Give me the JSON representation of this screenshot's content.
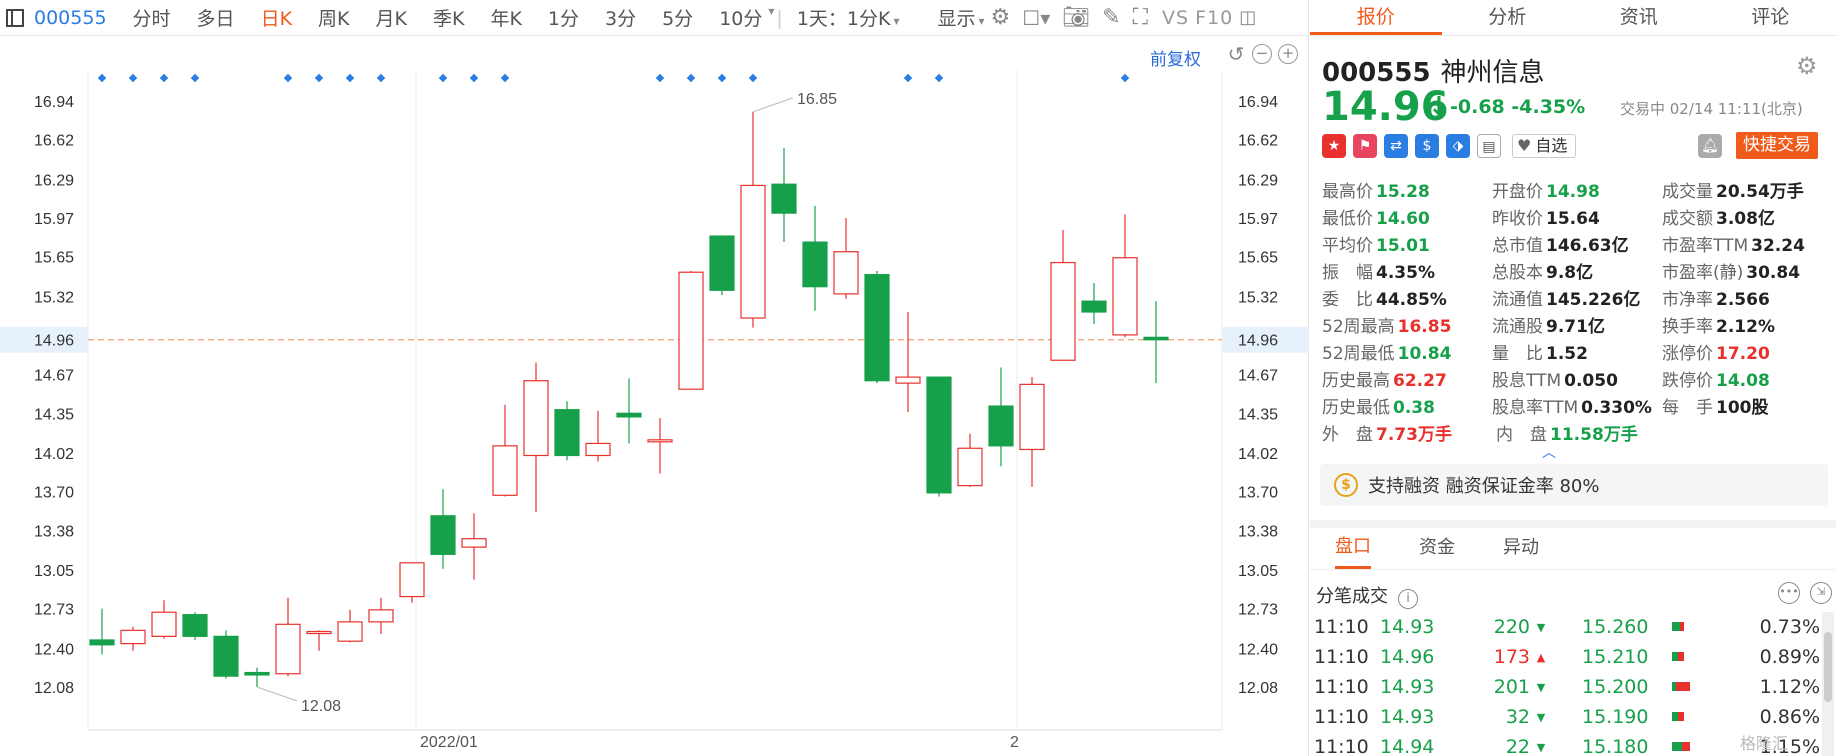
{
  "toolbar": {
    "code": "000555",
    "tabs": [
      "分时",
      "多日",
      "日K",
      "周K",
      "月K",
      "季K",
      "年K",
      "1分",
      "3分",
      "5分",
      "10分"
    ],
    "active_tab": "日K",
    "interval_select": "1天：1分K",
    "display_label": "显示",
    "vs_label": "VS",
    "f10_label": "F10"
  },
  "chart": {
    "adjust_label": "前复权",
    "high_label": "16.85",
    "low_label": "12.08",
    "current_price_label": "14.96",
    "x_labels": [
      "2022/01",
      "2"
    ]
  },
  "chart_data": {
    "type": "candlestick",
    "y_ticks": [
      "16.94",
      "16.62",
      "16.29",
      "15.97",
      "15.65",
      "15.32",
      "14.96",
      "14.67",
      "14.35",
      "14.02",
      "13.70",
      "13.38",
      "13.05",
      "12.73",
      "12.40",
      "12.08"
    ],
    "ylim": [
      12.08,
      16.94
    ],
    "current_price": 14.96,
    "candles": [
      {
        "o": 12.47,
        "h": 12.73,
        "l": 12.35,
        "c": 12.43
      },
      {
        "o": 12.44,
        "h": 12.58,
        "l": 12.38,
        "c": 12.55
      },
      {
        "o": 12.5,
        "h": 12.8,
        "l": 12.48,
        "c": 12.7
      },
      {
        "o": 12.68,
        "h": 12.7,
        "l": 12.47,
        "c": 12.5
      },
      {
        "o": 12.5,
        "h": 12.55,
        "l": 12.15,
        "c": 12.17
      },
      {
        "o": 12.2,
        "h": 12.24,
        "l": 12.08,
        "c": 12.18
      },
      {
        "o": 12.19,
        "h": 12.82,
        "l": 12.17,
        "c": 12.6
      },
      {
        "o": 12.53,
        "h": 12.55,
        "l": 12.38,
        "c": 12.54
      },
      {
        "o": 12.46,
        "h": 12.72,
        "l": 12.45,
        "c": 12.62
      },
      {
        "o": 12.62,
        "h": 12.82,
        "l": 12.52,
        "c": 12.72
      },
      {
        "o": 12.83,
        "h": 13.1,
        "l": 12.78,
        "c": 13.11
      },
      {
        "o": 13.5,
        "h": 13.72,
        "l": 13.06,
        "c": 13.18
      },
      {
        "o": 13.24,
        "h": 13.52,
        "l": 12.97,
        "c": 13.31
      },
      {
        "o": 13.67,
        "h": 14.42,
        "l": 13.66,
        "c": 14.08
      },
      {
        "o": 14.0,
        "h": 14.77,
        "l": 13.53,
        "c": 14.62
      },
      {
        "o": 14.38,
        "h": 14.45,
        "l": 13.96,
        "c": 14.0
      },
      {
        "o": 14.0,
        "h": 14.37,
        "l": 13.95,
        "c": 14.1
      },
      {
        "o": 14.35,
        "h": 14.64,
        "l": 14.1,
        "c": 14.32
      },
      {
        "o": 14.12,
        "h": 14.31,
        "l": 13.85,
        "c": 14.13
      },
      {
        "o": 14.55,
        "h": 15.53,
        "l": 14.55,
        "c": 15.52
      },
      {
        "o": 15.82,
        "h": 15.82,
        "l": 15.33,
        "c": 15.37
      },
      {
        "o": 15.14,
        "h": 16.85,
        "l": 15.06,
        "c": 16.24
      },
      {
        "o": 16.25,
        "h": 16.55,
        "l": 15.77,
        "c": 16.01
      },
      {
        "o": 15.77,
        "h": 16.07,
        "l": 15.2,
        "c": 15.4
      },
      {
        "o": 15.34,
        "h": 15.97,
        "l": 15.3,
        "c": 15.69
      },
      {
        "o": 15.5,
        "h": 15.53,
        "l": 14.6,
        "c": 14.62
      },
      {
        "o": 14.6,
        "h": 15.19,
        "l": 14.36,
        "c": 14.65
      },
      {
        "o": 14.65,
        "h": 14.65,
        "l": 13.66,
        "c": 13.69
      },
      {
        "o": 13.75,
        "h": 14.18,
        "l": 13.74,
        "c": 14.06
      },
      {
        "o": 14.41,
        "h": 14.73,
        "l": 13.91,
        "c": 14.08
      },
      {
        "o": 14.05,
        "h": 14.65,
        "l": 13.74,
        "c": 14.59
      },
      {
        "o": 14.79,
        "h": 15.87,
        "l": 14.79,
        "c": 15.6
      },
      {
        "o": 15.28,
        "h": 15.43,
        "l": 15.09,
        "c": 15.19
      },
      {
        "o": 15.0,
        "h": 16.0,
        "l": 14.98,
        "c": 15.64
      },
      {
        "o": 14.98,
        "h": 15.28,
        "l": 14.6,
        "c": 14.96
      }
    ],
    "marker_candles": [
      0,
      1,
      2,
      3,
      6,
      7,
      8,
      9,
      11,
      12,
      13,
      18,
      19,
      20,
      21,
      26,
      27,
      33
    ]
  },
  "quote": {
    "tabs": [
      "报价",
      "分析",
      "资讯",
      "评论"
    ],
    "code": "000555",
    "name": "神州信息",
    "price": "14.96",
    "arrow": "↓",
    "change": "-0.68",
    "change_pct": "-4.35%",
    "status": "交易中 02/14 11:11(北京)",
    "watch_label": "自选",
    "quick_trade": "快捷交易",
    "metrics": [
      [
        {
          "l": "最高价",
          "v": "15.28",
          "c": "g"
        },
        {
          "l": "开盘价",
          "v": "14.98",
          "c": "g"
        },
        {
          "l": "成交量",
          "v": "20.54万手",
          "c": "k"
        }
      ],
      [
        {
          "l": "最低价",
          "v": "14.60",
          "c": "g"
        },
        {
          "l": "昨收价",
          "v": "15.64",
          "c": "k"
        },
        {
          "l": "成交额",
          "v": "3.08亿",
          "c": "k"
        }
      ],
      [
        {
          "l": "平均价",
          "v": "15.01",
          "c": "g"
        },
        {
          "l": "总市值",
          "v": "146.63亿",
          "c": "k"
        },
        {
          "l": "市盈率TTM",
          "v": "32.24",
          "c": "k"
        }
      ],
      [
        {
          "l": "振　幅",
          "v": "4.35%",
          "c": "k"
        },
        {
          "l": "总股本",
          "v": "9.8亿",
          "c": "k"
        },
        {
          "l": "市盈率(静)",
          "v": "30.84",
          "c": "k"
        }
      ],
      [
        {
          "l": "委　比",
          "v": "44.85%",
          "c": "k"
        },
        {
          "l": "流通值",
          "v": "145.226亿",
          "c": "k"
        },
        {
          "l": "市净率",
          "v": "2.566",
          "c": "k"
        }
      ],
      [
        {
          "l": "52周最高",
          "v": "16.85",
          "c": "r"
        },
        {
          "l": "流通股",
          "v": "9.71亿",
          "c": "k"
        },
        {
          "l": "换手率",
          "v": "2.12%",
          "c": "k"
        }
      ],
      [
        {
          "l": "52周最低",
          "v": "10.84",
          "c": "g"
        },
        {
          "l": "量　比",
          "v": "1.52",
          "c": "k"
        },
        {
          "l": "涨停价",
          "v": "17.20",
          "c": "r"
        }
      ],
      [
        {
          "l": "历史最高",
          "v": "62.27",
          "c": "r"
        },
        {
          "l": "股息TTM",
          "v": "0.050",
          "c": "k"
        },
        {
          "l": "跌停价",
          "v": "14.08",
          "c": "g"
        }
      ],
      [
        {
          "l": "历史最低",
          "v": "0.38",
          "c": "g"
        },
        {
          "l": "股息率TTM",
          "v": "0.330%",
          "c": "k"
        },
        {
          "l": "每　手",
          "v": "100股",
          "c": "k"
        }
      ],
      [
        {
          "l": "外　盘",
          "v": "7.73万手",
          "c": "r"
        },
        {
          "l": "内　盘",
          "v": "11.58万手",
          "c": "g"
        }
      ]
    ],
    "banner": "支持融资 融资保证金率 80%"
  },
  "detail": {
    "tabs": [
      "盘口",
      "资金",
      "异动"
    ],
    "title": "分笔成交",
    "trades": [
      {
        "t": "11:10",
        "p": "14.93",
        "q": "220",
        "dir": "down",
        "pr": "15.260",
        "pct": "0.73%",
        "gw": 8,
        "rw": 4
      },
      {
        "t": "11:10",
        "p": "14.96",
        "q": "173",
        "dir": "up",
        "pr": "15.210",
        "pct": "0.89%",
        "gw": 6,
        "rw": 6
      },
      {
        "t": "11:10",
        "p": "14.93",
        "q": "201",
        "dir": "down",
        "pr": "15.200",
        "pct": "1.12%",
        "gw": 4,
        "rw": 14
      },
      {
        "t": "11:10",
        "p": "14.93",
        "q": "32",
        "dir": "down",
        "pr": "15.190",
        "pct": "0.86%",
        "gw": 6,
        "rw": 6
      },
      {
        "t": "11:10",
        "p": "14.94",
        "q": "22",
        "dir": "down",
        "pr": "15.180",
        "pct": "1.15%",
        "gw": 10,
        "rw": 8
      }
    ]
  },
  "watermark": "格隆汇"
}
